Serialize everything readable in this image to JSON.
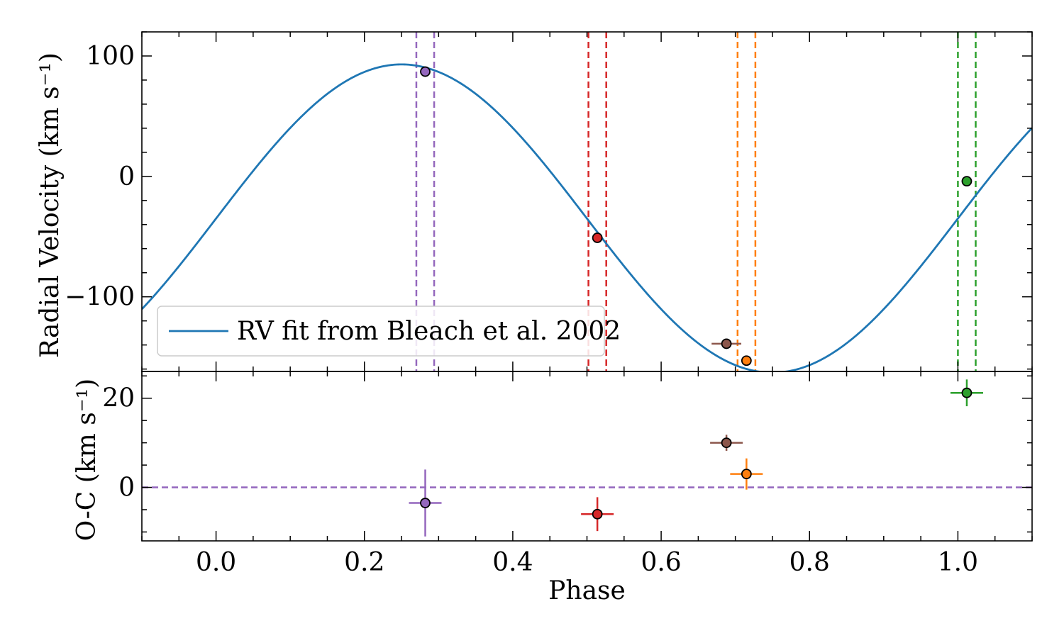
{
  "chart_data": {
    "type": "scatter",
    "xlabel": "Phase",
    "xlim": [
      -0.1,
      1.1
    ],
    "x_ticks": [
      0.0,
      0.2,
      0.4,
      0.6,
      0.8,
      1.0
    ],
    "x_tick_labels": [
      "0.0",
      "0.2",
      "0.4",
      "0.6",
      "0.8",
      "1.0"
    ],
    "top_panel": {
      "ylabel": "Radial Velocity (km s⁻¹)",
      "ylim": [
        -162,
        120
      ],
      "y_ticks": [
        100,
        0,
        -100
      ],
      "y_tick_labels": [
        "100",
        "0",
        "−100"
      ],
      "model_curve": {
        "name": "RV fit from Bleach et al. 2002",
        "color": "#1f77b4",
        "gamma": -35,
        "semi_amplitude": 128,
        "phase_of_max": 0.25
      },
      "legend_position": "lower-left",
      "phase_window_lines": [
        {
          "color": "#9467bd",
          "x": [
            0.27,
            0.294
          ]
        },
        {
          "color": "#d62728",
          "x": [
            0.502,
            0.526
          ]
        },
        {
          "color": "#ff7f0e",
          "x": [
            0.703,
            0.727
          ]
        },
        {
          "color": "#2ca02c",
          "x": [
            1.0,
            1.024
          ]
        }
      ],
      "points": [
        {
          "x": 0.282,
          "y": 87,
          "xerr": 0.0,
          "color": "#9467bd"
        },
        {
          "x": 0.514,
          "y": -51,
          "xerr": 0.0,
          "color": "#d62728"
        },
        {
          "x": 0.688,
          "y": -139,
          "xerr": 0.02,
          "color": "#8c564b"
        },
        {
          "x": 0.715,
          "y": -153,
          "xerr": 0.0,
          "color": "#ff7f0e"
        },
        {
          "x": 1.012,
          "y": -4,
          "xerr": 0.0,
          "color": "#2ca02c"
        }
      ]
    },
    "bottom_panel": {
      "ylabel": "O-C (km s⁻¹)",
      "ylim": [
        -12,
        26
      ],
      "y_ticks": [
        20,
        0
      ],
      "y_tick_labels": [
        "20",
        "0"
      ],
      "zero_line_color": "#9467bd",
      "points": [
        {
          "x": 0.282,
          "y": -3.5,
          "xerr": 0.022,
          "yerr": 7.5,
          "color": "#9467bd"
        },
        {
          "x": 0.514,
          "y": -6.0,
          "xerr": 0.022,
          "yerr": 3.8,
          "color": "#d62728"
        },
        {
          "x": 0.688,
          "y": 10.0,
          "xerr": 0.022,
          "yerr": 1.8,
          "color": "#8c564b"
        },
        {
          "x": 0.715,
          "y": 3.0,
          "xerr": 0.022,
          "yerr": 3.5,
          "color": "#ff7f0e"
        },
        {
          "x": 1.012,
          "y": 21.2,
          "xerr": 0.022,
          "yerr": 3.0,
          "color": "#2ca02c"
        }
      ]
    }
  }
}
